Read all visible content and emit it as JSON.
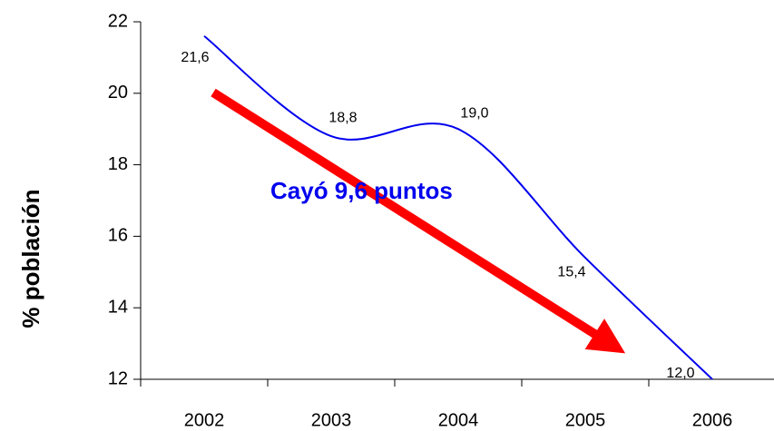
{
  "chart_data": {
    "type": "line",
    "y_label": "% población",
    "annotation": "Cayó 9,6 puntos",
    "categories": [
      "2002",
      "2003",
      "2004",
      "2005",
      "2006"
    ],
    "values": [
      21.6,
      18.8,
      19.0,
      15.4,
      12.0
    ],
    "value_labels": [
      "21,6",
      "18,8",
      "19,0",
      "15,4",
      "12,0"
    ],
    "color": "#0000ee",
    "ylim": [
      12,
      22
    ],
    "yticks": [
      12,
      14,
      16,
      18,
      20,
      22
    ],
    "grid": false
  }
}
